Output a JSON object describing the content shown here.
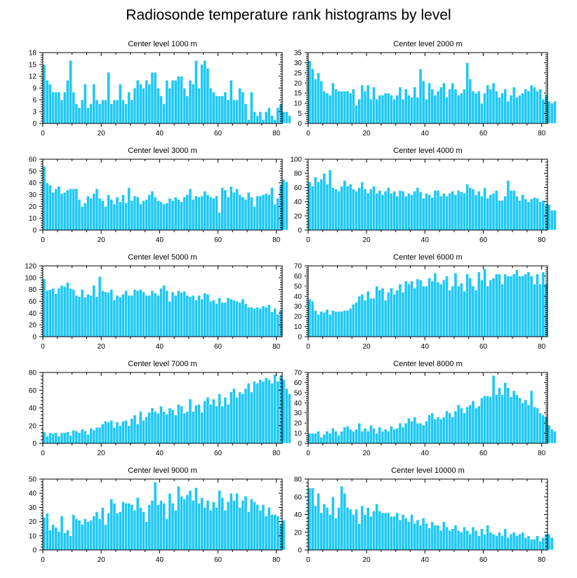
{
  "title": "Radiosonde temperature rank histograms by level",
  "colors": {
    "bar_fill": "#1cc8f5",
    "bar_stroke": "#ffffff",
    "axis": "#000000"
  },
  "chart_data": [
    {
      "type": "bar",
      "title": "Center level 1000 m",
      "x_start": 0,
      "xlim": [
        0,
        82
      ],
      "ylim": [
        0,
        18
      ],
      "xticks": [
        0,
        20,
        40,
        60,
        80
      ],
      "yticks": [
        0,
        3,
        6,
        9,
        12,
        15,
        18
      ],
      "values": [
        15,
        11,
        10,
        8,
        8,
        8,
        6,
        8,
        11,
        16,
        8,
        5,
        4,
        6,
        10,
        4,
        5,
        10,
        6,
        5,
        6,
        6,
        13,
        5,
        6,
        6,
        10,
        6,
        5,
        8,
        6,
        9,
        11,
        10,
        9,
        11,
        10,
        13,
        13,
        9,
        7,
        5,
        11,
        9,
        11,
        11,
        12,
        12,
        9,
        7,
        11,
        10,
        16,
        9,
        15,
        16,
        14,
        9,
        8,
        7,
        7,
        7,
        8,
        6,
        11,
        6,
        6,
        9,
        8,
        5,
        1,
        8,
        3,
        2,
        3,
        1,
        3,
        4,
        2,
        1,
        4,
        5,
        3,
        3,
        2
      ],
      "grid": false,
      "xlabel": "",
      "ylabel": ""
    },
    {
      "type": "bar",
      "title": "Center level 2000 m",
      "x_start": 0,
      "xlim": [
        0,
        82
      ],
      "ylim": [
        0,
        35
      ],
      "xticks": [
        0,
        20,
        40,
        60,
        80
      ],
      "yticks": [
        0,
        5,
        10,
        15,
        20,
        25,
        30,
        35
      ],
      "values": [
        31,
        27,
        22,
        25,
        21,
        16,
        15,
        14,
        20,
        17,
        16,
        16,
        16,
        16,
        15,
        17,
        9,
        12,
        19,
        16,
        19,
        12,
        18,
        12,
        14,
        14,
        15,
        15,
        14,
        12,
        14,
        18,
        12,
        17,
        14,
        13,
        18,
        13,
        27,
        21,
        12,
        20,
        17,
        14,
        16,
        18,
        20,
        13,
        17,
        20,
        17,
        14,
        15,
        17,
        30,
        22,
        16,
        15,
        16,
        10,
        15,
        19,
        17,
        20,
        16,
        13,
        15,
        17,
        11,
        14,
        18,
        13,
        14,
        15,
        17,
        16,
        19,
        18,
        16,
        17,
        12,
        14,
        11,
        10,
        11
      ],
      "grid": false,
      "xlabel": "",
      "ylabel": ""
    },
    {
      "type": "bar",
      "title": "Center level 3000 m",
      "x_start": 0,
      "xlim": [
        0,
        82
      ],
      "ylim": [
        0,
        60
      ],
      "xticks": [
        0,
        20,
        40,
        60,
        80
      ],
      "yticks": [
        0,
        10,
        20,
        30,
        40,
        50,
        60
      ],
      "values": [
        54,
        40,
        38,
        32,
        35,
        37,
        31,
        32,
        34,
        35,
        35,
        35,
        26,
        20,
        23,
        29,
        27,
        31,
        35,
        27,
        25,
        20,
        30,
        26,
        22,
        28,
        24,
        30,
        23,
        36,
        25,
        29,
        28,
        22,
        25,
        26,
        30,
        33,
        28,
        25,
        24,
        22,
        23,
        27,
        25,
        28,
        26,
        24,
        28,
        30,
        35,
        26,
        29,
        28,
        29,
        33,
        30,
        28,
        27,
        29,
        15,
        36,
        34,
        28,
        37,
        32,
        35,
        30,
        28,
        26,
        32,
        28,
        20,
        29,
        29,
        30,
        31,
        30,
        36,
        22,
        27,
        38,
        43,
        41
      ],
      "grid": false,
      "xlabel": "",
      "ylabel": ""
    },
    {
      "type": "bar",
      "title": "Center level 4000 m",
      "x_start": 0,
      "xlim": [
        0,
        82
      ],
      "ylim": [
        0,
        100
      ],
      "xticks": [
        0,
        20,
        40,
        60,
        80
      ],
      "yticks": [
        0,
        20,
        40,
        60,
        80,
        100
      ],
      "values": [
        68,
        62,
        75,
        68,
        72,
        80,
        65,
        85,
        60,
        58,
        55,
        62,
        70,
        62,
        65,
        58,
        55,
        60,
        68,
        58,
        52,
        58,
        62,
        52,
        56,
        50,
        55,
        60,
        52,
        55,
        48,
        56,
        55,
        48,
        52,
        50,
        55,
        60,
        54,
        45,
        52,
        50,
        46,
        56,
        56,
        48,
        52,
        48,
        52,
        55,
        50,
        56,
        54,
        52,
        65,
        60,
        58,
        50,
        55,
        48,
        60,
        45,
        50,
        52,
        56,
        42,
        42,
        48,
        70,
        56,
        56,
        48,
        42,
        50,
        44,
        40,
        44,
        46,
        45,
        40,
        42,
        36,
        36,
        28,
        28
      ],
      "grid": false,
      "xlabel": "",
      "ylabel": ""
    },
    {
      "type": "bar",
      "title": "Center level 5000 m",
      "x_start": 0,
      "xlim": [
        0,
        82
      ],
      "ylim": [
        0,
        120
      ],
      "xticks": [
        0,
        20,
        40,
        60,
        80
      ],
      "yticks": [
        0,
        20,
        40,
        60,
        80,
        100,
        120
      ],
      "values": [
        98,
        78,
        80,
        82,
        73,
        82,
        87,
        85,
        92,
        82,
        80,
        70,
        68,
        80,
        67,
        72,
        70,
        87,
        68,
        102,
        78,
        76,
        75,
        80,
        62,
        70,
        67,
        72,
        78,
        70,
        70,
        80,
        78,
        80,
        76,
        70,
        70,
        78,
        74,
        70,
        82,
        87,
        78,
        60,
        76,
        70,
        78,
        75,
        77,
        70,
        68,
        70,
        62,
        70,
        64,
        74,
        72,
        60,
        62,
        56,
        66,
        58,
        58,
        66,
        64,
        62,
        60,
        58,
        64,
        56,
        50,
        50,
        48,
        50,
        48,
        52,
        50,
        54,
        42,
        48,
        38,
        45
      ],
      "grid": false,
      "xlabel": "",
      "ylabel": ""
    },
    {
      "type": "bar",
      "title": "Center level 6000 m",
      "x_start": 0,
      "xlim": [
        0,
        82
      ],
      "ylim": [
        0,
        70
      ],
      "xticks": [
        0,
        20,
        40,
        60,
        80
      ],
      "yticks": [
        0,
        10,
        20,
        30,
        40,
        50,
        60,
        70
      ],
      "values": [
        37,
        35,
        26,
        22,
        25,
        24,
        27,
        22,
        26,
        25,
        25,
        25,
        26,
        26,
        28,
        32,
        34,
        40,
        42,
        36,
        45,
        38,
        38,
        50,
        46,
        48,
        36,
        44,
        48,
        42,
        46,
        52,
        44,
        55,
        52,
        55,
        48,
        57,
        56,
        50,
        50,
        58,
        55,
        63,
        54,
        52,
        56,
        60,
        46,
        50,
        63,
        50,
        53,
        45,
        62,
        58,
        50,
        46,
        64,
        56,
        67,
        50,
        56,
        58,
        62,
        62,
        52,
        62,
        60,
        60,
        62,
        66,
        60,
        60,
        62,
        64,
        60,
        52,
        62,
        52,
        64,
        52
      ],
      "grid": false,
      "xlabel": "",
      "ylabel": ""
    },
    {
      "type": "bar",
      "title": "Center level 7000 m",
      "x_start": 0,
      "xlim": [
        0,
        82
      ],
      "ylim": [
        0,
        80
      ],
      "xticks": [
        0,
        20,
        40,
        60,
        80
      ],
      "yticks": [
        0,
        20,
        40,
        60,
        80
      ],
      "values": [
        13,
        8,
        12,
        11,
        12,
        8,
        12,
        12,
        13,
        9,
        15,
        14,
        12,
        16,
        14,
        10,
        17,
        15,
        18,
        18,
        22,
        25,
        24,
        26,
        18,
        24,
        20,
        25,
        26,
        20,
        28,
        32,
        22,
        36,
        26,
        30,
        35,
        40,
        36,
        34,
        42,
        36,
        33,
        40,
        38,
        32,
        44,
        42,
        34,
        36,
        50,
        36,
        43,
        44,
        35,
        48,
        52,
        44,
        50,
        42,
        56,
        42,
        52,
        44,
        58,
        62,
        52,
        58,
        56,
        62,
        68,
        58,
        70,
        68,
        72,
        70,
        74,
        72,
        68,
        78,
        70,
        76,
        72,
        62,
        56
      ],
      "grid": false,
      "xlabel": "",
      "ylabel": ""
    },
    {
      "type": "bar",
      "title": "Center level 8000 m",
      "x_start": 0,
      "xlim": [
        0,
        82
      ],
      "ylim": [
        0,
        70
      ],
      "xticks": [
        0,
        20,
        40,
        60,
        80
      ],
      "yticks": [
        0,
        10,
        20,
        30,
        40,
        50,
        60,
        70
      ],
      "values": [
        10,
        10,
        10,
        12,
        6,
        9,
        12,
        10,
        15,
        12,
        8,
        12,
        16,
        17,
        14,
        12,
        14,
        20,
        12,
        15,
        12,
        18,
        15,
        10,
        16,
        12,
        14,
        12,
        17,
        14,
        15,
        20,
        16,
        20,
        25,
        22,
        26,
        20,
        20,
        18,
        22,
        28,
        30,
        24,
        26,
        24,
        26,
        32,
        30,
        26,
        32,
        38,
        35,
        30,
        36,
        38,
        42,
        35,
        37,
        45,
        47,
        47,
        46,
        67,
        48,
        55,
        48,
        60,
        55,
        46,
        52,
        48,
        45,
        40,
        43,
        38,
        52,
        36,
        35,
        30,
        28,
        26,
        18,
        14,
        12
      ],
      "grid": false,
      "xlabel": "",
      "ylabel": ""
    },
    {
      "type": "bar",
      "title": "Center level 9000 m",
      "x_start": 0,
      "xlim": [
        0,
        82
      ],
      "ylim": [
        0,
        50
      ],
      "xticks": [
        0,
        20,
        40,
        60,
        80
      ],
      "yticks": [
        0,
        10,
        20,
        30,
        40,
        50
      ],
      "values": [
        23,
        26,
        14,
        18,
        16,
        13,
        24,
        12,
        14,
        10,
        25,
        22,
        21,
        18,
        22,
        20,
        21,
        24,
        27,
        22,
        30,
        18,
        26,
        36,
        33,
        26,
        27,
        34,
        33,
        33,
        32,
        28,
        37,
        30,
        27,
        20,
        32,
        35,
        48,
        32,
        35,
        33,
        22,
        40,
        33,
        28,
        45,
        38,
        36,
        39,
        42,
        35,
        44,
        33,
        37,
        30,
        35,
        28,
        34,
        30,
        42,
        37,
        28,
        34,
        40,
        35,
        40,
        30,
        35,
        38,
        27,
        36,
        34,
        32,
        28,
        32,
        24,
        30,
        25,
        25,
        24,
        18,
        21
      ],
      "grid": false,
      "xlabel": "",
      "ylabel": ""
    },
    {
      "type": "bar",
      "title": "Center level 10000 m",
      "x_start": 0,
      "xlim": [
        0,
        82
      ],
      "ylim": [
        0,
        80
      ],
      "xticks": [
        0,
        20,
        40,
        60,
        80
      ],
      "yticks": [
        0,
        20,
        40,
        60,
        80
      ],
      "values": [
        70,
        70,
        50,
        64,
        42,
        52,
        48,
        40,
        60,
        36,
        48,
        72,
        64,
        48,
        46,
        40,
        46,
        30,
        50,
        40,
        48,
        38,
        44,
        52,
        44,
        42,
        42,
        42,
        38,
        38,
        42,
        34,
        40,
        36,
        32,
        40,
        30,
        34,
        28,
        36,
        30,
        25,
        32,
        28,
        28,
        22,
        32,
        26,
        22,
        24,
        28,
        22,
        20,
        26,
        22,
        18,
        26,
        22,
        16,
        24,
        18,
        28,
        20,
        18,
        16,
        20,
        16,
        24,
        14,
        18,
        20,
        16,
        18,
        20,
        14,
        16,
        12,
        12,
        16,
        10,
        14,
        18,
        18,
        14
      ],
      "grid": false,
      "xlabel": "",
      "ylabel": ""
    }
  ]
}
